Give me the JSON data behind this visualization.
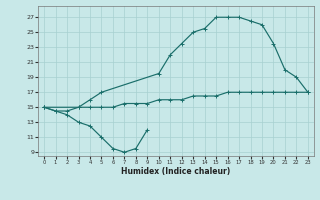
{
  "xlabel": "Humidex (Indice chaleur)",
  "bg_color": "#c8e8e8",
  "grid_color": "#a8d0d0",
  "line_color": "#1a6e6a",
  "line1_x": [
    0,
    1,
    2,
    3,
    4,
    5,
    6,
    7,
    8,
    9
  ],
  "line1_y": [
    15,
    14.5,
    14,
    13,
    12.5,
    11,
    9.5,
    9,
    9.5,
    12
  ],
  "line2_x": [
    0,
    1,
    2,
    3,
    4,
    5,
    6,
    7,
    8,
    9,
    10,
    11,
    12,
    13,
    14,
    15,
    16,
    17,
    18,
    19,
    20,
    21,
    22,
    23
  ],
  "line2_y": [
    15,
    14.5,
    14.5,
    15,
    15,
    15,
    15,
    15.5,
    15.5,
    15.5,
    16,
    16,
    16,
    16.5,
    16.5,
    16.5,
    17,
    17,
    17,
    17,
    17,
    17,
    17,
    17
  ],
  "line3_x": [
    0,
    3,
    4,
    5,
    10,
    11,
    12,
    13,
    14,
    15,
    16,
    17,
    18,
    19,
    20,
    21,
    22,
    23
  ],
  "line3_y": [
    15,
    15,
    16,
    17,
    19.5,
    22,
    23.5,
    25,
    25.5,
    27,
    27,
    27,
    26.5,
    26,
    23.5,
    20,
    19,
    17
  ],
  "xlim": [
    -0.5,
    23.5
  ],
  "ylim": [
    8.5,
    28.5
  ],
  "yticks": [
    9,
    11,
    13,
    15,
    17,
    19,
    21,
    23,
    25,
    27
  ],
  "xticks": [
    0,
    1,
    2,
    3,
    4,
    5,
    6,
    7,
    8,
    9,
    10,
    11,
    12,
    13,
    14,
    15,
    16,
    17,
    18,
    19,
    20,
    21,
    22,
    23
  ],
  "xlabel_fontsize": 5.5,
  "tick_fontsize": 4.5,
  "xtick_fontsize": 3.8,
  "linewidth": 0.85,
  "markersize": 3.0,
  "markeredgewidth": 0.7
}
